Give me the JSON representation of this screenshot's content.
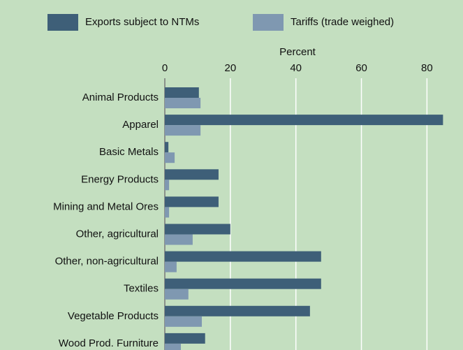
{
  "chart_data": {
    "type": "barh",
    "xlabel": "Percent",
    "categories": [
      "Animal Products",
      "Apparel",
      "Basic Metals",
      "Energy Products",
      "Mining and Metal Ores",
      "Other, agricultural",
      "Other, non-agricultural",
      "Textiles",
      "Vegetable Products",
      "Wood Prod. Furniture"
    ],
    "series": [
      {
        "name": "Exports subject to NTMs",
        "color": "#3e5f78",
        "values": [
          10.4,
          84.9,
          1.1,
          16.4,
          16.4,
          20,
          47.7,
          47.7,
          44.3,
          12.3
        ]
      },
      {
        "name": "Tariffs (trade weighed)",
        "color": "#7f98b1",
        "values": [
          10.9,
          10.9,
          3.0,
          1.3,
          1.3,
          8.5,
          3.6,
          7.2,
          11.3,
          4.9
        ]
      }
    ],
    "xlim": [
      0,
      91
    ],
    "xticks": [
      0,
      20,
      40,
      60,
      80
    ],
    "grid": true,
    "legend": "top"
  }
}
